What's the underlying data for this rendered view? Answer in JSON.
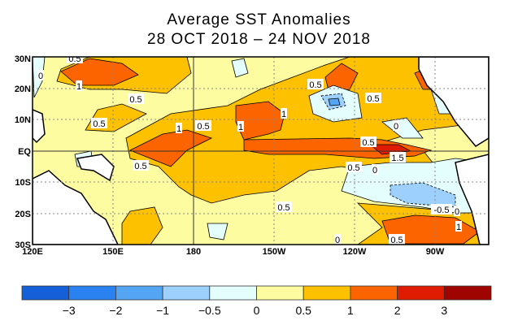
{
  "title_line1": "Average SST Anomalies",
  "title_line2": "28 OCT 2018 – 24 NOV 2018",
  "axes": {
    "lat_labels": [
      "30N",
      "20N",
      "10N",
      "EQ",
      "10S",
      "20S",
      "30S"
    ],
    "lon_labels": [
      "120E",
      "150E",
      "180",
      "150W",
      "120W",
      "90W"
    ]
  },
  "contour_labels": [
    "0.5",
    "0",
    "1",
    "0.5",
    "0.5",
    "1",
    "0.5",
    "1",
    "1",
    "0.5",
    "0.5",
    "0",
    "0.5",
    "1.5",
    "0.5",
    "0",
    "0.5",
    "0.5",
    "-0.5",
    "0",
    "1",
    "0.5",
    "0"
  ],
  "colorbar": {
    "colors": [
      "#1560d8",
      "#2a82f0",
      "#55a5f5",
      "#9dd0fc",
      "#e4fdfd",
      "#fdfca0",
      "#fdc100",
      "#fc6400",
      "#e01c00",
      "#a00400"
    ],
    "tick_labels": [
      "−3",
      "−2",
      "−1",
      "−0.5",
      "0",
      "0.5",
      "1",
      "2",
      "3"
    ]
  }
}
